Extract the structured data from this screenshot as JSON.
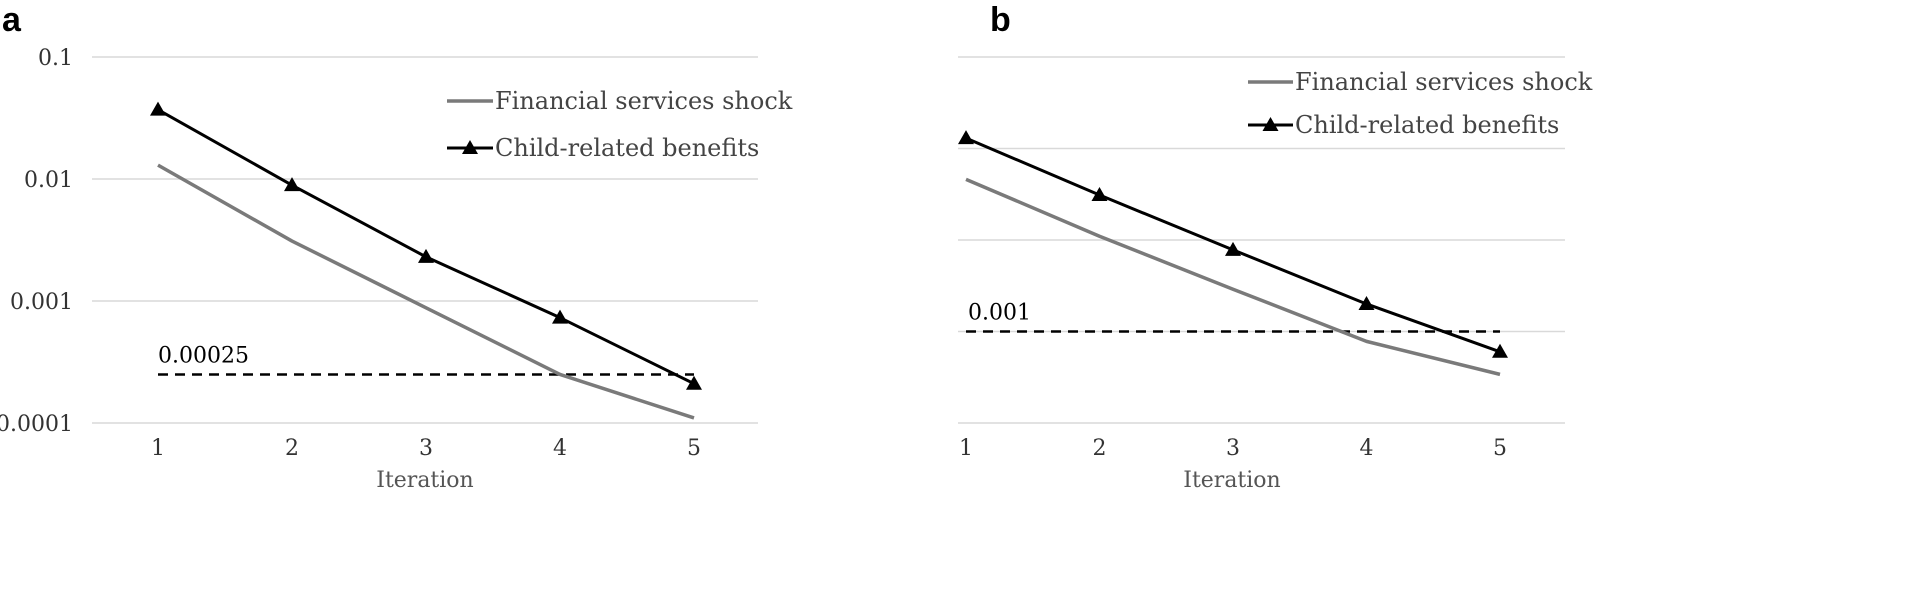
{
  "chart_data": [
    {
      "panel": "a",
      "type": "line",
      "xlabel": "Iteration",
      "ylabel": "",
      "yscale": "log",
      "ylim": [
        0.0001,
        0.1
      ],
      "y_ticks": [
        "0.0001",
        "0.001",
        "0.01",
        "0.1"
      ],
      "categories": [
        "1",
        "2",
        "3",
        "4",
        "5"
      ],
      "grid": true,
      "legend_position": "top-right",
      "series": [
        {
          "name": "Financial services shock",
          "color": "#7a7a7a",
          "marker": "none",
          "values": [
            0.013,
            0.0031,
            0.00088,
            0.00025,
            0.00011
          ]
        },
        {
          "name": "Child-related benefits",
          "color": "#000000",
          "marker": "triangle",
          "values": [
            0.037,
            0.0089,
            0.0023,
            0.00073,
            0.00021
          ]
        }
      ],
      "reference_line": {
        "value": 0.00025,
        "label": "0.00025",
        "style": "dashed"
      }
    },
    {
      "panel": "b",
      "type": "line",
      "xlabel": "Iteration",
      "ylabel": "",
      "yscale": "log",
      "ylim": [
        0.0001,
        1
      ],
      "y_ticks": [
        "0.0001",
        "0.001",
        "0.01",
        "0.1",
        "1"
      ],
      "categories": [
        "1",
        "2",
        "3",
        "4",
        "5"
      ],
      "grid": true,
      "legend_position": "top-right",
      "series": [
        {
          "name": "Financial services shock",
          "color": "#7a7a7a",
          "marker": "none",
          "values": [
            0.046,
            0.011,
            0.0029,
            0.00078,
            0.00034
          ]
        },
        {
          "name": "Child-related benefits",
          "color": "#000000",
          "marker": "triangle",
          "values": [
            0.13,
            0.031,
            0.0078,
            0.002,
            0.0006
          ]
        }
      ],
      "reference_line": {
        "value": 0.001,
        "label": "0.001",
        "style": "dashed"
      }
    }
  ],
  "panels": [
    "a",
    "b"
  ]
}
